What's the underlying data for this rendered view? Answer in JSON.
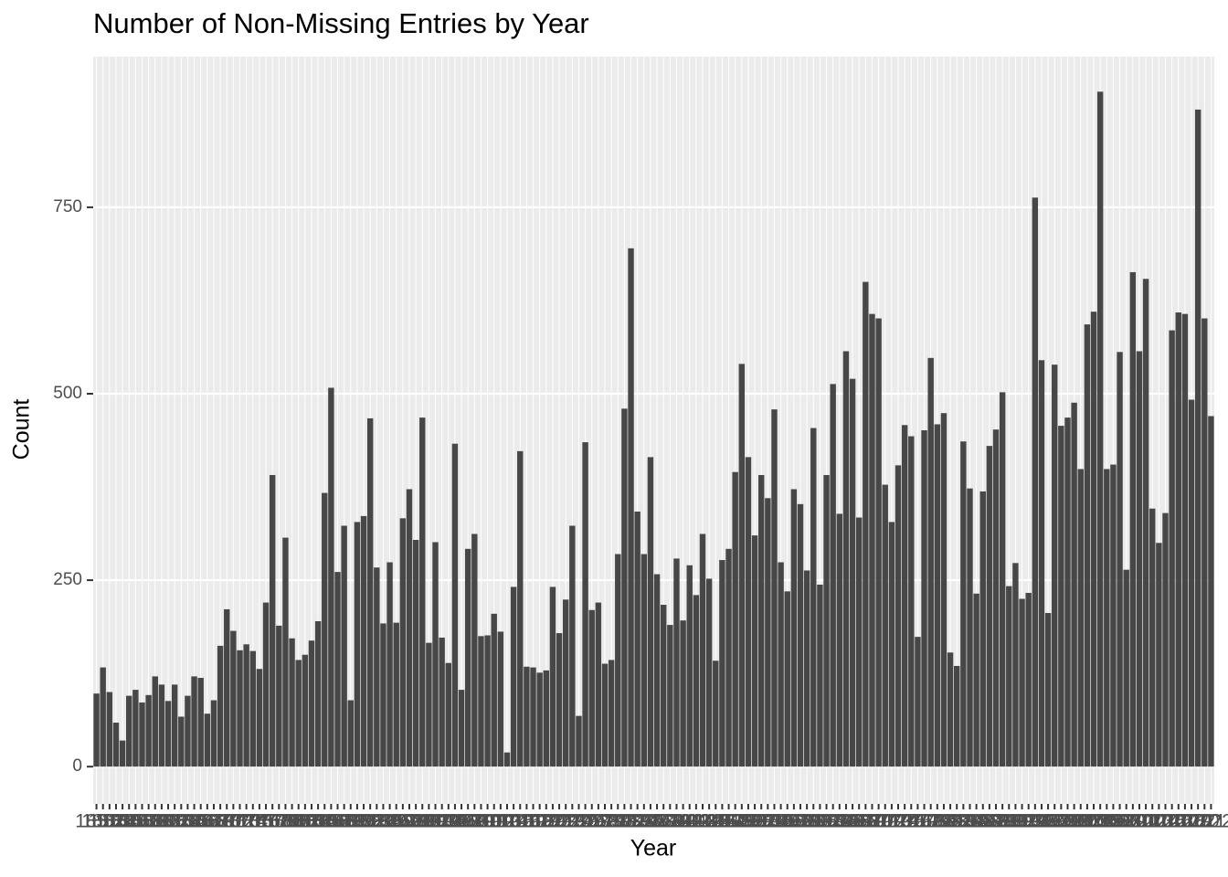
{
  "chart_data": {
    "type": "bar",
    "title": "Number of Non-Missing Entries by Year",
    "x_label": "Year",
    "y_label": "Count",
    "color": "#474747",
    "grid": true,
    "ylim": [
      -50,
      952
    ],
    "yticks": [
      0,
      250,
      500,
      750
    ],
    "categories": [
      "1851",
      "1852",
      "1853",
      "1854",
      "1855",
      "1856",
      "1857",
      "1858",
      "1859",
      "1860",
      "1861",
      "1862",
      "1863",
      "1864",
      "1865",
      "1866",
      "1867",
      "1868",
      "1869",
      "1870",
      "1871",
      "1872",
      "1873",
      "1874",
      "1875",
      "1876",
      "1877",
      "1878",
      "1879",
      "1880",
      "1881",
      "1882",
      "1883",
      "1884",
      "1885",
      "1886",
      "1887",
      "1888",
      "1889",
      "1890",
      "1891",
      "1892",
      "1893",
      "1894",
      "1895",
      "1896",
      "1897",
      "1898",
      "1899",
      "1900",
      "1901",
      "1902",
      "1903",
      "1904",
      "1905",
      "1906",
      "1907",
      "1908",
      "1909",
      "1910",
      "1911",
      "1912",
      "1913",
      "1914",
      "1915",
      "1916",
      "1917",
      "1918",
      "1919",
      "1920",
      "1921",
      "1922",
      "1923",
      "1924",
      "1925",
      "1926",
      "1927",
      "1928",
      "1929",
      "1930",
      "1931",
      "1932",
      "1933",
      "1934",
      "1935",
      "1936",
      "1937",
      "1938",
      "1939",
      "1940",
      "1941",
      "1942",
      "1943",
      "1944",
      "1945",
      "1946",
      "1947",
      "1948",
      "1949",
      "1950",
      "1951",
      "1952",
      "1953",
      "1954",
      "1955",
      "1956",
      "1957",
      "1958",
      "1959",
      "1960",
      "1961",
      "1962",
      "1963",
      "1964",
      "1965",
      "1966",
      "1967",
      "1968",
      "1969",
      "1970",
      "1971",
      "1972",
      "1973",
      "1974",
      "1975",
      "1976",
      "1977",
      "1978",
      "1979",
      "1980",
      "1981",
      "1982",
      "1983",
      "1984",
      "1985",
      "1986",
      "1987",
      "1988",
      "1989",
      "1990",
      "1991",
      "1992",
      "1993",
      "1994",
      "1995",
      "1996",
      "1997",
      "1998",
      "1999",
      "2000",
      "2001",
      "2002",
      "2003",
      "2004",
      "2005",
      "2006",
      "2007",
      "2008",
      "2009",
      "2010",
      "2011",
      "2012",
      "2013",
      "2014",
      "2015",
      "2016",
      "2017",
      "2018",
      "2019",
      "2020",
      "2021",
      "2022"
    ],
    "values": [
      98,
      133,
      100,
      59,
      35,
      95,
      103,
      86,
      96,
      121,
      110,
      88,
      110,
      67,
      95,
      121,
      119,
      71,
      89,
      162,
      211,
      182,
      156,
      164,
      155,
      131,
      220,
      391,
      189,
      307,
      172,
      143,
      150,
      169,
      195,
      367,
      508,
      261,
      323,
      89,
      328,
      336,
      467,
      267,
      192,
      274,
      193,
      333,
      372,
      304,
      468,
      166,
      301,
      173,
      139,
      433,
      103,
      292,
      312,
      175,
      176,
      205,
      181,
      19,
      241,
      423,
      134,
      133,
      126,
      129,
      241,
      179,
      224,
      323,
      68,
      435,
      210,
      220,
      138,
      143,
      285,
      480,
      695,
      342,
      285,
      415,
      258,
      217,
      190,
      279,
      196,
      270,
      230,
      312,
      252,
      142,
      277,
      292,
      395,
      540,
      415,
      310,
      391,
      360,
      479,
      274,
      235,
      372,
      352,
      263,
      454,
      244,
      391,
      513,
      339,
      557,
      520,
      334,
      650,
      607,
      601,
      378,
      328,
      404,
      458,
      443,
      174,
      451,
      548,
      459,
      474,
      153,
      135,
      436,
      373,
      232,
      369,
      430,
      452,
      502,
      242,
      273,
      225,
      233,
      763,
      545,
      206,
      539,
      457,
      468,
      488,
      399,
      593,
      610,
      905,
      399,
      405,
      556,
      264,
      663,
      557,
      654,
      346,
      300,
      340,
      585,
      609,
      607,
      492,
      881,
      601,
      470
    ]
  }
}
